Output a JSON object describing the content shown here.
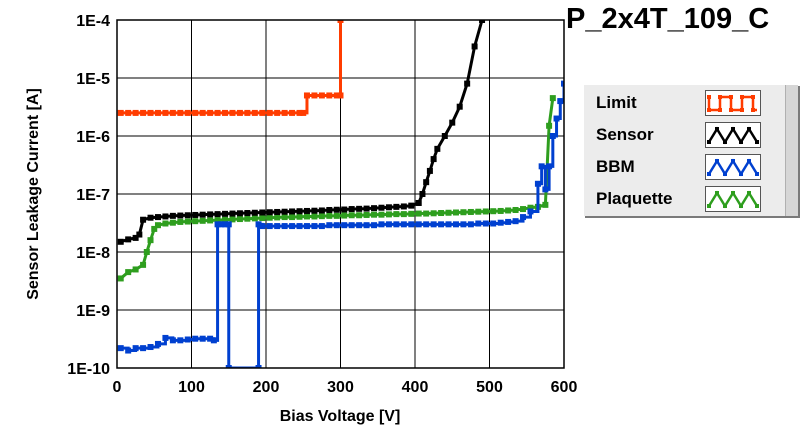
{
  "chart_data": {
    "type": "line",
    "title": "P_2x4T_109_C",
    "xlabel": "Bias Voltage [V]",
    "ylabel": "Sensor Leakage Current [A]",
    "xlim": [
      0,
      600
    ],
    "ylim": [
      1e-10,
      0.0001
    ],
    "y_scale": "log",
    "grid": true,
    "legend_position": "right",
    "x_ticks": [
      0,
      100,
      200,
      300,
      400,
      500,
      600
    ],
    "x_tick_labels": [
      "0",
      "100",
      "200",
      "300",
      "400",
      "500",
      "600"
    ],
    "y_ticks": [
      1e-10,
      1e-09,
      1e-08,
      1e-07,
      1e-06,
      1e-05,
      0.0001
    ],
    "y_tick_labels": [
      "1E-10",
      "1E-9",
      "1E-8",
      "1E-7",
      "1E-6",
      "1E-5",
      "1E-4"
    ],
    "series": [
      {
        "name": "Limit",
        "color": "#ff3c00",
        "step": true,
        "markers": true,
        "x": [
          5,
          15,
          25,
          35,
          45,
          55,
          65,
          75,
          85,
          95,
          105,
          115,
          125,
          135,
          145,
          155,
          165,
          175,
          185,
          195,
          205,
          215,
          225,
          235,
          245,
          250,
          255,
          265,
          275,
          285,
          295,
          300,
          300
        ],
        "y": [
          2.5e-06,
          2.5e-06,
          2.5e-06,
          2.5e-06,
          2.5e-06,
          2.5e-06,
          2.5e-06,
          2.5e-06,
          2.5e-06,
          2.5e-06,
          2.5e-06,
          2.5e-06,
          2.5e-06,
          2.5e-06,
          2.5e-06,
          2.5e-06,
          2.5e-06,
          2.5e-06,
          2.5e-06,
          2.5e-06,
          2.5e-06,
          2.5e-06,
          2.5e-06,
          2.5e-06,
          2.5e-06,
          2.5e-06,
          5e-06,
          5e-06,
          5e-06,
          5e-06,
          5e-06,
          5e-06,
          0.0001
        ]
      },
      {
        "name": "Sensor",
        "color": "#000000",
        "step": false,
        "markers": true,
        "x": [
          5,
          15,
          25,
          30,
          35,
          45,
          55,
          65,
          75,
          85,
          95,
          105,
          115,
          125,
          135,
          145,
          155,
          165,
          175,
          185,
          195,
          205,
          215,
          225,
          235,
          245,
          255,
          265,
          275,
          285,
          295,
          305,
          315,
          325,
          335,
          345,
          355,
          365,
          375,
          385,
          395,
          405,
          410,
          415,
          420,
          425,
          430,
          440,
          450,
          460,
          470,
          480,
          490
        ],
        "y": [
          1.5e-08,
          1.65e-08,
          1.75e-08,
          2e-08,
          3.6e-08,
          3.9e-08,
          4e-08,
          4.1e-08,
          4.2e-08,
          4.25e-08,
          4.3e-08,
          4.35e-08,
          4.4e-08,
          4.45e-08,
          4.5e-08,
          4.55e-08,
          4.6e-08,
          4.65e-08,
          4.7e-08,
          4.75e-08,
          4.8e-08,
          4.85e-08,
          4.9e-08,
          4.95e-08,
          5e-08,
          5.05e-08,
          5.1e-08,
          5.15e-08,
          5.2e-08,
          5.3e-08,
          5.35e-08,
          5.4e-08,
          5.5e-08,
          5.55e-08,
          5.6e-08,
          5.7e-08,
          5.8e-08,
          5.9e-08,
          6e-08,
          6.1e-08,
          6.3e-08,
          7e-08,
          1e-07,
          1.6e-07,
          2.5e-07,
          4e-07,
          6e-07,
          1e-06,
          1.7e-06,
          3.2e-06,
          8e-06,
          3.5e-05,
          0.0001
        ]
      },
      {
        "name": "BBM",
        "color": "#0040d0",
        "step": true,
        "markers": true,
        "x": [
          5,
          15,
          25,
          35,
          45,
          55,
          65,
          75,
          85,
          95,
          105,
          115,
          125,
          130,
          135,
          140,
          145,
          150,
          150,
          190,
          190,
          195,
          205,
          215,
          225,
          235,
          245,
          255,
          265,
          275,
          285,
          295,
          305,
          315,
          325,
          335,
          345,
          355,
          365,
          375,
          385,
          395,
          405,
          415,
          425,
          435,
          445,
          455,
          465,
          475,
          485,
          495,
          505,
          515,
          525,
          535,
          545,
          555,
          565,
          570,
          575,
          580,
          585,
          590,
          595,
          600
        ],
        "y": [
          2.2e-10,
          2e-10,
          2.2e-10,
          2.2e-10,
          2.3e-10,
          2.6e-10,
          3.3e-10,
          3e-10,
          3e-10,
          3.1e-10,
          3.2e-10,
          3.2e-10,
          3.2e-10,
          3e-10,
          3e-08,
          3e-08,
          3e-08,
          3e-08,
          1e-10,
          1e-10,
          3e-08,
          2.8e-08,
          2.8e-08,
          2.8e-08,
          2.8e-08,
          2.8e-08,
          2.8e-08,
          2.8e-08,
          2.8e-08,
          2.8e-08,
          2.9e-08,
          2.9e-08,
          2.9e-08,
          2.9e-08,
          2.9e-08,
          2.9e-08,
          2.9e-08,
          3e-08,
          3e-08,
          3e-08,
          3e-08,
          3e-08,
          3e-08,
          3e-08,
          3e-08,
          3e-08,
          3e-08,
          3e-08,
          3e-08,
          3e-08,
          3.1e-08,
          3.1e-08,
          3.1e-08,
          3.2e-08,
          3.3e-08,
          3.4e-08,
          4e-08,
          5e-08,
          1.5e-07,
          3e-07,
          1.2e-07,
          3e-07,
          1e-06,
          2e-06,
          4e-06,
          8e-06
        ]
      },
      {
        "name": "Plaquette",
        "color": "#2e9e1e",
        "step": false,
        "markers": true,
        "x": [
          5,
          15,
          25,
          35,
          40,
          45,
          50,
          55,
          65,
          75,
          85,
          95,
          105,
          115,
          125,
          135,
          145,
          155,
          165,
          175,
          185,
          195,
          205,
          215,
          225,
          235,
          245,
          255,
          265,
          275,
          285,
          295,
          305,
          315,
          325,
          335,
          345,
          355,
          365,
          375,
          385,
          395,
          405,
          415,
          425,
          435,
          445,
          455,
          465,
          475,
          485,
          495,
          505,
          515,
          525,
          535,
          545,
          555,
          565,
          575,
          580,
          585
        ],
        "y": [
          3.5e-09,
          4.5e-09,
          5e-09,
          6e-09,
          1e-08,
          1.6e-08,
          2.5e-08,
          2.9e-08,
          3.1e-08,
          3.2e-08,
          3.3e-08,
          3.35e-08,
          3.4e-08,
          3.45e-08,
          3.5e-08,
          3.55e-08,
          3.6e-08,
          3.65e-08,
          3.7e-08,
          3.75e-08,
          3.8e-08,
          3.85e-08,
          3.9e-08,
          3.95e-08,
          4e-08,
          4e-08,
          4.05e-08,
          4.1e-08,
          4.1e-08,
          4.15e-08,
          4.2e-08,
          4.2e-08,
          4.25e-08,
          4.3e-08,
          4.3e-08,
          4.35e-08,
          4.4e-08,
          4.4e-08,
          4.45e-08,
          4.5e-08,
          4.5e-08,
          4.55e-08,
          4.6e-08,
          4.6e-08,
          4.65e-08,
          4.7e-08,
          4.75e-08,
          4.8e-08,
          4.85e-08,
          4.9e-08,
          4.95e-08,
          5e-08,
          5.05e-08,
          5.1e-08,
          5.2e-08,
          5.3e-08,
          5.5e-08,
          5.8e-08,
          6e-08,
          6.5e-08,
          1.5e-06,
          4.5e-06
        ]
      }
    ]
  },
  "legend": {
    "items": [
      {
        "label": "Limit",
        "color": "#ff3c00",
        "pattern": "square"
      },
      {
        "label": "Sensor",
        "color": "#000000",
        "pattern": "triangle"
      },
      {
        "label": "BBM",
        "color": "#0040d0",
        "pattern": "triangle"
      },
      {
        "label": "Plaquette",
        "color": "#2e9e1e",
        "pattern": "triangle"
      }
    ]
  }
}
